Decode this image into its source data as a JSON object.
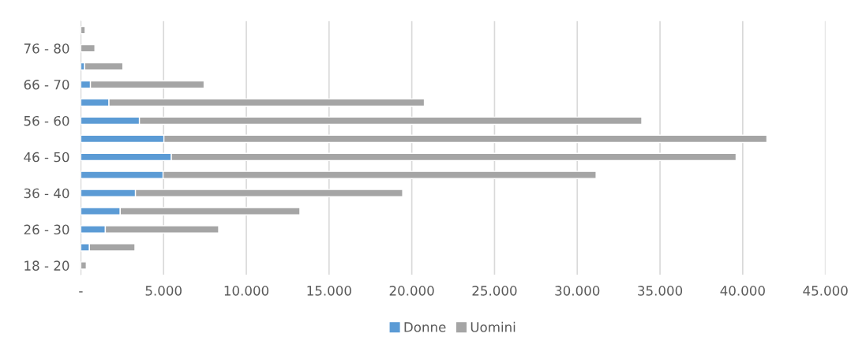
{
  "chart_data": {
    "type": "bar",
    "orientation": "horizontal",
    "stacked": true,
    "categories": [
      null,
      "76 - 80",
      null,
      "66 - 70",
      null,
      "56 - 60",
      null,
      "46 - 50",
      null,
      "36 - 40",
      null,
      "26 - 30",
      null,
      "18 - 20"
    ],
    "series": [
      {
        "name": "Donne",
        "color": "#5b9bd5",
        "values": [
          0,
          0,
          230,
          580,
          1700,
          3540,
          5020,
          5470,
          4970,
          3300,
          2380,
          1480,
          520,
          0
        ]
      },
      {
        "name": "Uomini",
        "color": "#a5a5a5",
        "values": [
          260,
          850,
          2310,
          6870,
          19060,
          30360,
          36440,
          34130,
          26170,
          16150,
          10860,
          6850,
          2750,
          330
        ]
      }
    ],
    "xlim": [
      0,
      45000
    ],
    "xticks": [
      {
        "value": 0,
        "label": "-"
      },
      {
        "value": 5000,
        "label": "5.000"
      },
      {
        "value": 10000,
        "label": "10.000"
      },
      {
        "value": 15000,
        "label": "15.000"
      },
      {
        "value": 20000,
        "label": "20.000"
      },
      {
        "value": 25000,
        "label": "25.000"
      },
      {
        "value": 30000,
        "label": "30.000"
      },
      {
        "value": 35000,
        "label": "35.000"
      },
      {
        "value": 40000,
        "label": "40.000"
      },
      {
        "value": 45000,
        "label": "45.000"
      }
    ],
    "grid": "x",
    "legend": "bottom"
  }
}
